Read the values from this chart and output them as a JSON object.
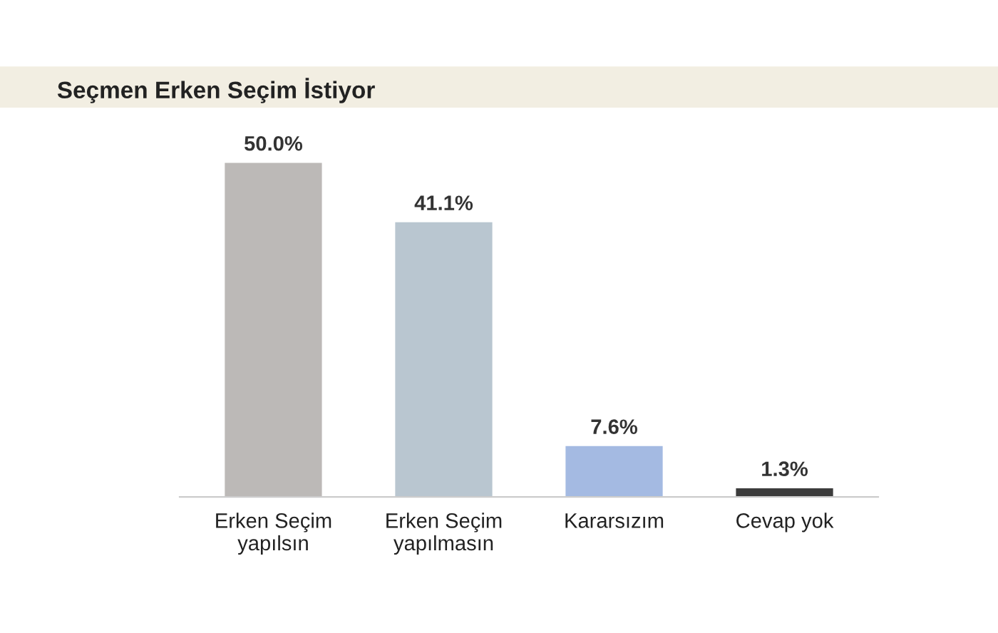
{
  "chart_data": {
    "type": "bar",
    "title": "Seçmen Erken Seçim İstiyor",
    "categories": [
      "Erken Seçim\nyapılsın",
      "Erken Seçim\nyapılmasın",
      "Kararsızım",
      "Cevap yok"
    ],
    "values": [
      50.0,
      41.1,
      7.6,
      1.3
    ],
    "colors": [
      "#bcb9b7",
      "#b9c6d0",
      "#a4bae2",
      "#3c3c3c"
    ],
    "value_labels": [
      "50.0%",
      "41.1%",
      "7.6%",
      "1.3%"
    ],
    "grid": false,
    "legend": false
  }
}
